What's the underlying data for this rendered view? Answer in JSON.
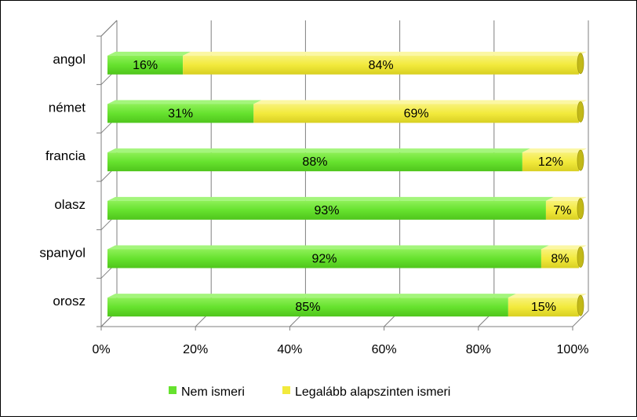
{
  "chart_data": {
    "type": "bar",
    "orientation": "horizontal",
    "stacked": "percent",
    "three_d": true,
    "categories": [
      "angol",
      "német",
      "francia",
      "olasz",
      "spanyol",
      "orosz"
    ],
    "series": [
      {
        "name": "Nem ismeri",
        "values": [
          16,
          31,
          88,
          93,
          92,
          85
        ],
        "labels": [
          "16%",
          "31%",
          "88%",
          "93%",
          "92%",
          "85%"
        ]
      },
      {
        "name": "Legalább alapszinten ismeri",
        "values": [
          84,
          69,
          12,
          7,
          8,
          15
        ],
        "labels": [
          "84%",
          "69%",
          "12%",
          "7%",
          "8%",
          "15%"
        ]
      }
    ],
    "xlim": [
      0,
      100
    ],
    "xticks": [
      "0%",
      "20%",
      "40%",
      "60%",
      "80%",
      "100%"
    ],
    "grid": true,
    "legend_position": "bottom",
    "colors": {
      "Nem ismeri": "#66e22e",
      "Legalább alapszinten ismeri": "#f2ea3c"
    }
  }
}
